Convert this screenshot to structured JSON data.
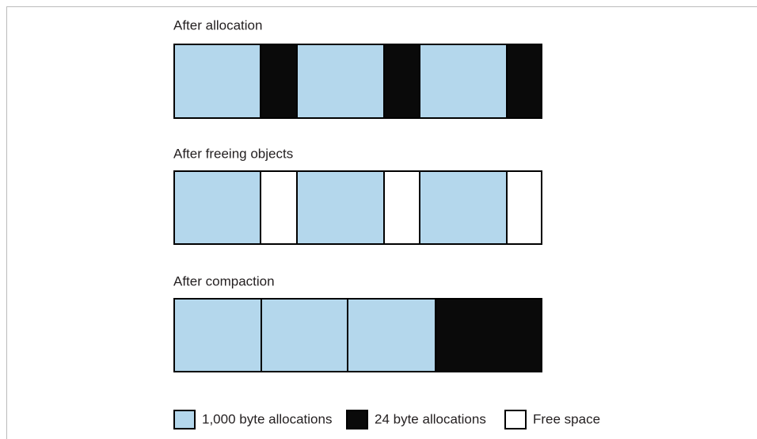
{
  "sections": [
    {
      "title": "After allocation"
    },
    {
      "title": "After freeing objects"
    },
    {
      "title": "After compaction"
    }
  ],
  "legend": [
    {
      "label": "1,000 byte allocations"
    },
    {
      "label": "24 byte allocations"
    },
    {
      "label": "Free space"
    }
  ]
}
